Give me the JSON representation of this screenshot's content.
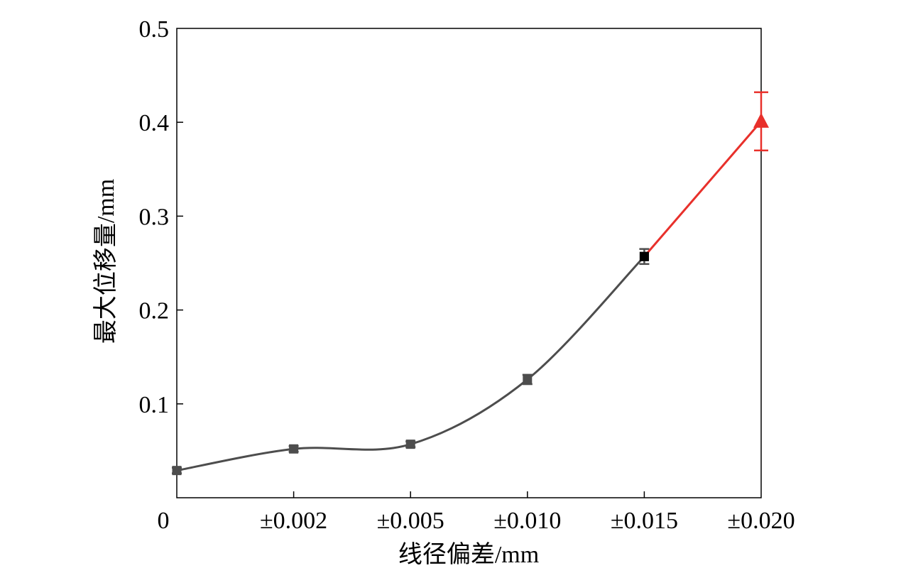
{
  "chart_data": {
    "type": "line",
    "xlabel": "线径偏差/mm",
    "ylabel": "最大位移量/mm",
    "categories": [
      "0",
      "±0.002",
      "±0.005",
      "±0.010",
      "±0.015",
      "±0.020"
    ],
    "ylim": [
      0,
      0.5
    ],
    "yticks": [
      0.1,
      0.2,
      0.3,
      0.4,
      0.5
    ],
    "ytick_labels": [
      "0.1",
      "0.2",
      "0.3",
      "0.4",
      "0.5"
    ],
    "grid": false,
    "legend": "none",
    "series": [
      {
        "color": "#4d4d4d",
        "marker": "square",
        "smooth": true,
        "points": [
          {
            "x": 0,
            "y": 0.029,
            "err": 0.003
          },
          {
            "x": 1,
            "y": 0.052,
            "err": 0.003
          },
          {
            "x": 2,
            "y": 0.057,
            "err": 0.003
          },
          {
            "x": 3,
            "y": 0.126,
            "err": 0.005
          },
          {
            "x": 4,
            "y": 0.257,
            "err": 0.008
          }
        ]
      },
      {
        "color": "#e8302b",
        "marker": "triangle",
        "smooth": false,
        "points": [
          {
            "x": 4,
            "y": 0.257,
            "err": 0,
            "hidden_marker": true
          },
          {
            "x": 5,
            "y": 0.401,
            "err": 0.031
          }
        ]
      }
    ],
    "highlight_marker": {
      "x": 4,
      "y": 0.257,
      "color": "#000000"
    }
  }
}
